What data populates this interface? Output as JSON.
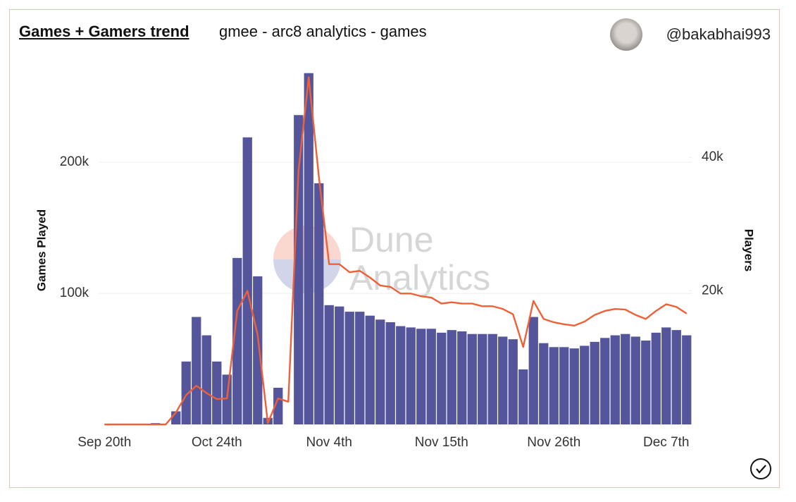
{
  "header": {
    "title": "Games + Gamers trend",
    "subtitle": "gmee - arc8 analytics - games",
    "user": "@bakabhai993"
  },
  "chart_data": {
    "type": "bar",
    "watermark": [
      "Dune",
      "Analytics"
    ],
    "categories": [
      "Sep 20th",
      null,
      null,
      null,
      null,
      null,
      null,
      null,
      null,
      null,
      null,
      "Oct 24th",
      null,
      null,
      null,
      null,
      null,
      null,
      null,
      null,
      null,
      null,
      "Nov 4th",
      null,
      null,
      null,
      null,
      null,
      null,
      null,
      null,
      null,
      null,
      "Nov 15th",
      null,
      null,
      null,
      null,
      null,
      null,
      null,
      null,
      null,
      null,
      "Nov 26th",
      null,
      null,
      null,
      null,
      null,
      null,
      null,
      null,
      null,
      null,
      "Dec 7th",
      null,
      null
    ],
    "series": [
      {
        "name": "Games Played",
        "type": "bar",
        "color": "#55559b",
        "values": [
          0,
          0,
          0,
          0,
          0,
          1000,
          0,
          10000,
          48000,
          82000,
          68000,
          48000,
          38000,
          127000,
          219000,
          113000,
          5000,
          28000,
          0,
          236000,
          268000,
          184000,
          91000,
          90000,
          86000,
          86000,
          83000,
          80000,
          78000,
          75000,
          74000,
          73000,
          73000,
          70000,
          72000,
          71000,
          69000,
          69000,
          69000,
          67000,
          65000,
          42000,
          82000,
          62000,
          59000,
          59000,
          58000,
          60000,
          63000,
          66000,
          68000,
          69000,
          67000,
          64000,
          70000,
          74000,
          72000,
          68000
        ]
      },
      {
        "name": "Players",
        "type": "line",
        "axis": "y2",
        "color": "#ef6038",
        "values": [
          0,
          0,
          0,
          0,
          0,
          0,
          0,
          1800,
          4400,
          5800,
          4700,
          3800,
          3900,
          17000,
          20000,
          13400,
          200,
          3900,
          3400,
          38000,
          52000,
          37000,
          24000,
          24000,
          22800,
          23000,
          22000,
          20800,
          20600,
          19600,
          19600,
          19200,
          19000,
          18100,
          18300,
          18100,
          18100,
          17700,
          17700,
          17300,
          16500,
          11600,
          18500,
          15800,
          15300,
          15000,
          14800,
          15400,
          16400,
          17000,
          17300,
          17200,
          16400,
          15800,
          17000,
          18000,
          17600,
          16600
        ]
      }
    ],
    "ylim": [
      0,
      270000
    ],
    "yticks": [
      {
        "value": 100000,
        "label": "100k"
      },
      {
        "value": 200000,
        "label": "200k"
      }
    ],
    "y2lim": [
      0,
      53000
    ],
    "y2ticks": [
      {
        "value": 20000,
        "label": "20k"
      },
      {
        "value": 40000,
        "label": "40k"
      }
    ],
    "grid": true
  }
}
